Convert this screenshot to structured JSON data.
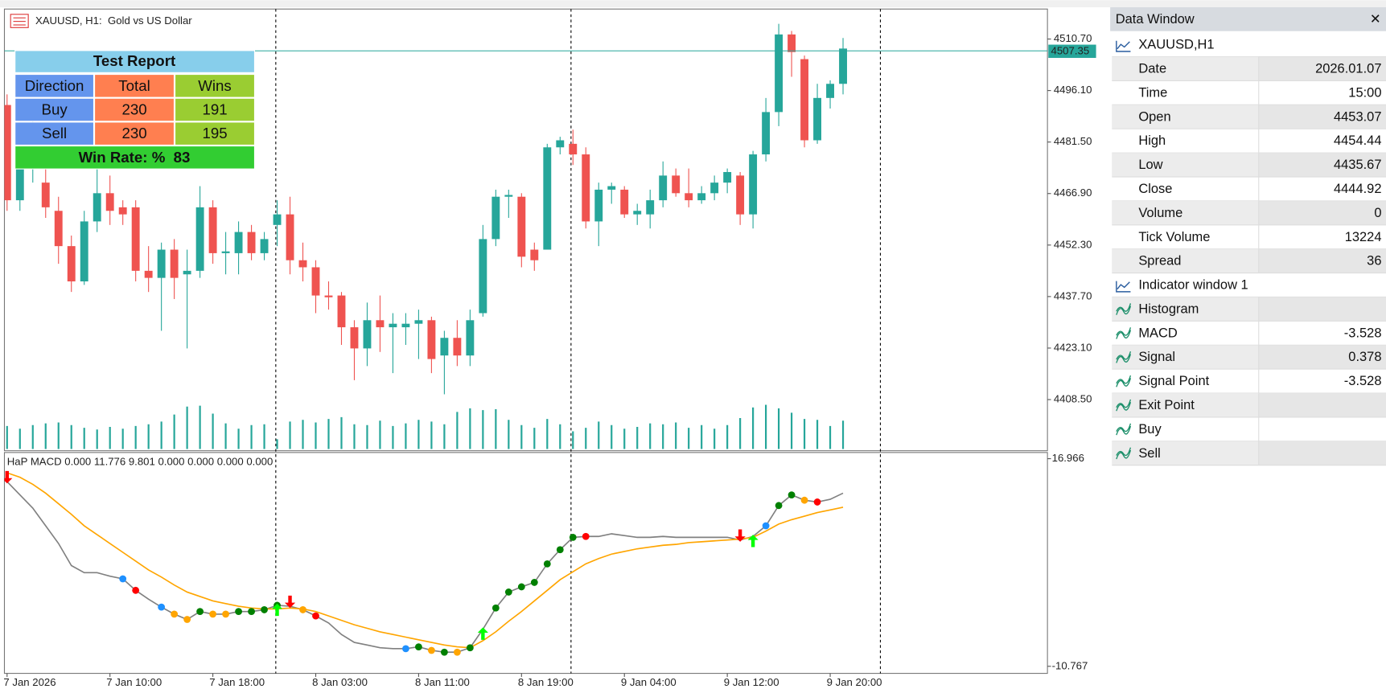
{
  "chart_data": [
    {
      "type": "candlestick",
      "title": "XAUUSD, H1:  Gold vs US Dollar",
      "categories": [
        "7 Jan 2026",
        null,
        null,
        null,
        null,
        null,
        null,
        null,
        "7 Jan 10:00",
        null,
        null,
        null,
        null,
        null,
        null,
        null,
        "7 Jan 18:00",
        null,
        null,
        null,
        null,
        null,
        null,
        null,
        "8 Jan 03:00",
        null,
        null,
        null,
        null,
        null,
        null,
        null,
        "8 Jan 11:00",
        null,
        null,
        null,
        null,
        null,
        null,
        null,
        "8 Jan 19:00",
        null,
        null,
        null,
        null,
        null,
        null,
        null,
        "9 Jan 04:00",
        null,
        null,
        null,
        null,
        null,
        null,
        null,
        "9 Jan 12:00",
        null,
        null,
        null,
        null,
        null,
        null,
        null,
        "9 Jan 20:00",
        null
      ],
      "open": [
        4492,
        4465,
        4475,
        4470,
        4462,
        4452,
        4442,
        4459,
        4467,
        4463,
        4463,
        4445,
        4443,
        4451,
        4444,
        4445,
        4463,
        4450,
        4450,
        4456,
        4450,
        4458,
        4461,
        4448,
        4446,
        4438,
        4438,
        4429,
        4423,
        4431,
        4429,
        4429,
        4430,
        4431,
        4421,
        4426,
        4421,
        4433,
        4454,
        4466,
        4466,
        4451,
        4451,
        4480,
        4481,
        4478,
        4459,
        4468,
        4468,
        4461,
        4461,
        4465,
        4472,
        4467,
        4465,
        4467,
        4470,
        4472,
        4461,
        4478,
        4490,
        4512,
        4505,
        4482,
        4494,
        4498
      ],
      "high": [
        4495,
        4485,
        4490,
        4476,
        4466,
        4455,
        4462,
        4476,
        4472,
        4465,
        4465,
        4452,
        4453,
        4454,
        4451,
        4469,
        4465,
        4456,
        4459,
        4458,
        4456,
        4465,
        4466,
        4453,
        4448,
        4442,
        4439,
        4431,
        4436,
        4438,
        4433,
        4433,
        4434,
        4432,
        4428,
        4431,
        4434,
        4458,
        4468,
        4468,
        4467,
        4453,
        4481,
        4483,
        4485,
        4480,
        4470,
        4470,
        4469,
        4464,
        4468,
        4476,
        4474,
        4474,
        4469,
        4472,
        4474,
        4473,
        4479,
        4494,
        4515,
        4513,
        4506,
        4498,
        4499,
        4511
      ],
      "low": [
        4462,
        4462,
        4470,
        4460,
        4447,
        4439,
        4441,
        4456,
        4458,
        4458,
        4442,
        4439,
        4428,
        4437,
        4423,
        4443,
        4447,
        4444,
        4444,
        4448,
        4448,
        4452,
        4444,
        4442,
        4433,
        4434,
        4424,
        4414,
        4418,
        4422,
        4416,
        4424,
        4420,
        4416,
        4410,
        4418,
        4418,
        4432,
        4452,
        4460,
        4446,
        4445,
        4451,
        4478,
        4475,
        4457,
        4452,
        4464,
        4460,
        4458,
        4457,
        4463,
        4466,
        4463,
        4464,
        4465,
        4467,
        4458,
        4457,
        4476,
        4486,
        4500,
        4480,
        4481,
        4491,
        4495
      ],
      "close": [
        4465,
        4480,
        4485,
        4463,
        4452,
        4442,
        4459,
        4467,
        4462,
        4461,
        4445,
        4443,
        4451,
        4443,
        4445,
        4463,
        4450,
        4450.5,
        4456,
        4450,
        4454,
        4461,
        4448,
        4446,
        4438,
        4437.5,
        4429,
        4423,
        4431,
        4429,
        4430,
        4430,
        4431,
        4420,
        4426,
        4421,
        4431,
        4454,
        4466,
        4466.5,
        4449,
        4448,
        4480,
        4482,
        4478,
        4459,
        4468,
        4469,
        4461,
        4462,
        4465,
        4472,
        4467,
        4465,
        4467,
        4470,
        4473,
        4461,
        4478,
        4490,
        4512,
        4507,
        4482,
        4494,
        4498,
        4508
      ],
      "volume": [
        10400,
        9200,
        10800,
        11600,
        12000,
        10800,
        9600,
        8800,
        10000,
        9200,
        10400,
        11200,
        12400,
        15600,
        19200,
        19600,
        16000,
        11600,
        9200,
        10800,
        11200,
        4400,
        12400,
        13200,
        12000,
        13600,
        14400,
        11200,
        10800,
        12800,
        10400,
        11600,
        13200,
        12400,
        11200,
        16800,
        18400,
        17600,
        18000,
        13200,
        10800,
        9600,
        13600,
        11200,
        8000,
        9600,
        12400,
        10800,
        9200,
        10000,
        11600,
        11200,
        12000,
        9600,
        10800,
        9200,
        10800,
        14000,
        18800,
        20000,
        18400,
        16400,
        13600,
        13200,
        10400,
        12800
      ],
      "up_color": "#26a69a",
      "down_color": "#ef5350",
      "volume_color": "#26a69a",
      "ylim": [
        4394,
        4519.2
      ],
      "yticks": [
        {
          "value": 4510.7,
          "label": "4510.70"
        },
        {
          "value": 4496.1,
          "label": "4496.10"
        },
        {
          "value": 4481.5,
          "label": "4481.50"
        },
        {
          "value": 4466.9,
          "label": "4466.90"
        },
        {
          "value": 4452.3,
          "label": "4452.30"
        },
        {
          "value": 4437.7,
          "label": "4437.70"
        },
        {
          "value": 4423.1,
          "label": "4423.10"
        },
        {
          "value": 4408.5,
          "label": "4408.50"
        }
      ],
      "current_price": 4507.35,
      "current_price_color": "#26a69a"
    },
    {
      "type": "line",
      "title": "HaP MACD 0.000 11.776 9.801 0.000 0.000 0.000 0.000",
      "series": [
        {
          "color": "#808080",
          "values": [
            13.9,
            12.13,
            10.36,
            8.0,
            5.64,
            2.69,
            1.74,
            1.74,
            1.27,
            0.92,
            -0.62,
            -1.8,
            -2.86,
            -3.8,
            -4.51,
            -3.45,
            -3.8,
            -3.8,
            -3.45,
            -3.45,
            -3.21,
            -2.62,
            -2.74,
            -3.21,
            -4.04,
            -4.98,
            -6.52,
            -7.58,
            -7.93,
            -8.29,
            -8.41,
            -8.41,
            -8.17,
            -8.64,
            -8.88,
            -8.88,
            -8.29,
            -5.81,
            -2.98,
            -0.85,
            -0.15,
            0.44,
            2.92,
            4.81,
            6.46,
            6.58,
            6.58,
            6.93,
            6.7,
            6.46,
            6.46,
            6.58,
            6.46,
            6.46,
            6.46,
            6.46,
            6.46,
            6.11,
            6.58,
            8.0,
            10.71,
            12.13,
            11.42,
            11.18,
            11.54,
            12.36
          ]
        },
        {
          "color": "#ffa500",
          "values": [
            15.08,
            14.49,
            13.54,
            12.36,
            10.95,
            9.53,
            8.0,
            6.82,
            5.64,
            4.46,
            3.28,
            2.1,
            1.15,
            0.09,
            -0.85,
            -1.44,
            -2.03,
            -2.39,
            -2.74,
            -2.98,
            -3.1,
            -3.1,
            -2.98,
            -3.1,
            -3.45,
            -4.04,
            -4.63,
            -5.22,
            -5.69,
            -6.16,
            -6.52,
            -6.87,
            -7.23,
            -7.58,
            -7.93,
            -8.17,
            -8.29,
            -7.34,
            -6.16,
            -4.75,
            -3.45,
            -2.03,
            -0.62,
            0.8,
            1.86,
            2.92,
            3.63,
            4.22,
            4.57,
            4.93,
            5.17,
            5.4,
            5.52,
            5.75,
            5.87,
            5.99,
            6.11,
            6.23,
            6.46,
            7.29,
            8.23,
            8.82,
            9.29,
            9.77,
            10.12,
            10.48
          ]
        }
      ],
      "point_colors": [
        null,
        null,
        null,
        null,
        null,
        null,
        null,
        null,
        null,
        "#1e90ff",
        "#ff0000",
        null,
        "#1e90ff",
        "#ffa500",
        "#ffa500",
        "#008000",
        "#ffa500",
        "#ffa500",
        "#008000",
        "#008000",
        "#008000",
        "#008000",
        null,
        "#ffa500",
        "#ff0000",
        null,
        null,
        null,
        null,
        null,
        null,
        "#1e90ff",
        "#008000",
        "#ffa500",
        "#008000",
        "#ffa500",
        "#008000",
        null,
        "#008000",
        "#008000",
        "#008000",
        "#008000",
        "#008000",
        "#008000",
        "#008000",
        "#ff0000",
        null,
        null,
        null,
        null,
        null,
        null,
        null,
        null,
        null,
        null,
        null,
        null,
        null,
        "#1e90ff",
        "#008000",
        "#008000",
        "#ffa500",
        "#ff0000",
        null,
        null
      ],
      "arrows": [
        "down",
        null,
        null,
        null,
        null,
        null,
        null,
        null,
        null,
        null,
        null,
        null,
        null,
        null,
        null,
        null,
        null,
        null,
        null,
        null,
        null,
        "up",
        "down",
        null,
        null,
        null,
        null,
        null,
        null,
        null,
        null,
        null,
        null,
        null,
        null,
        null,
        null,
        "up",
        null,
        null,
        null,
        null,
        null,
        null,
        null,
        null,
        null,
        null,
        null,
        null,
        null,
        null,
        null,
        null,
        null,
        null,
        null,
        "down",
        "up",
        null,
        null,
        null,
        null,
        null,
        null,
        null
      ],
      "up_arrow_color": "#00ff00",
      "down_arrow_color": "#ff0000",
      "ylim": [
        -10.767,
        16.966
      ],
      "yticks": [
        16.966,
        -10.767
      ]
    }
  ],
  "test_report": {
    "title": "Test Report",
    "columns": [
      "Direction",
      "Total",
      "Wins"
    ],
    "rows": [
      [
        "Buy",
        230,
        191
      ],
      [
        "Sell",
        230,
        195
      ]
    ],
    "win_rate": "Win Rate: %  83"
  },
  "data_window": {
    "title": "Data Window",
    "close_button": "✕",
    "symbol": "XAUUSD,H1",
    "rows": [
      {
        "label": "Date",
        "value": "2026.01.07"
      },
      {
        "label": "Time",
        "value": "15:00"
      },
      {
        "label": "Open",
        "value": "4453.07"
      },
      {
        "label": "High",
        "value": "4454.44"
      },
      {
        "label": "Low",
        "value": "4435.67"
      },
      {
        "label": "Close",
        "value": "4444.92"
      },
      {
        "label": "Volume",
        "value": "0"
      },
      {
        "label": "Tick Volume",
        "value": "13224"
      },
      {
        "label": "Spread",
        "value": "36"
      }
    ],
    "indicator": "Indicator window 1",
    "buffers": [
      {
        "label": "Histogram"
      },
      {
        "label": "MACD",
        "value": "-3.528"
      },
      {
        "label": "Signal",
        "value": "0.378"
      },
      {
        "label": "Signal Point",
        "value": "-3.528"
      },
      {
        "label": "Exit Point"
      },
      {
        "label": "Buy"
      },
      {
        "label": "Sell"
      }
    ]
  }
}
